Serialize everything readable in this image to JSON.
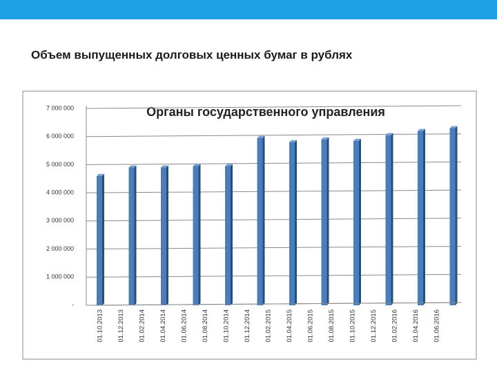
{
  "slide_title": "Объем выпущенных долговых ценных бумаг в рублях",
  "chart_data": {
    "type": "bar",
    "title": "Органы государственного управления",
    "categories": [
      "01.10.2013",
      "01.12.2013",
      "01.02.2014",
      "01.04.2014",
      "01.06.2014",
      "01.08.2014",
      "01.10.2014",
      "01.12.2014",
      "01.02.2015",
      "01.04.2015",
      "01.06.2015",
      "01.08.2015",
      "01.10.2015",
      "01.12.2015",
      "01.02.2016",
      "01.04.2016",
      "01.06.2016"
    ],
    "values": [
      4600000,
      null,
      4900000,
      4900000,
      null,
      4950000,
      4950000,
      null,
      5950000,
      5800000,
      null,
      5900000,
      5850000,
      null,
      6050000,
      6200000,
      6300000
    ],
    "color": "#4a7ebb",
    "ylim": [
      0,
      7000000
    ],
    "yticks": [
      {
        "value": 0,
        "label": "-"
      },
      {
        "value": 1000000,
        "label": "1 000 000"
      },
      {
        "value": 2000000,
        "label": "2 000 000"
      },
      {
        "value": 3000000,
        "label": "3 000 000"
      },
      {
        "value": 4000000,
        "label": "4 000 000"
      },
      {
        "value": 5000000,
        "label": "5 000 000"
      },
      {
        "value": 6000000,
        "label": "6 000 000"
      },
      {
        "value": 7000000,
        "label": "7 000 000"
      }
    ],
    "grid": true
  }
}
